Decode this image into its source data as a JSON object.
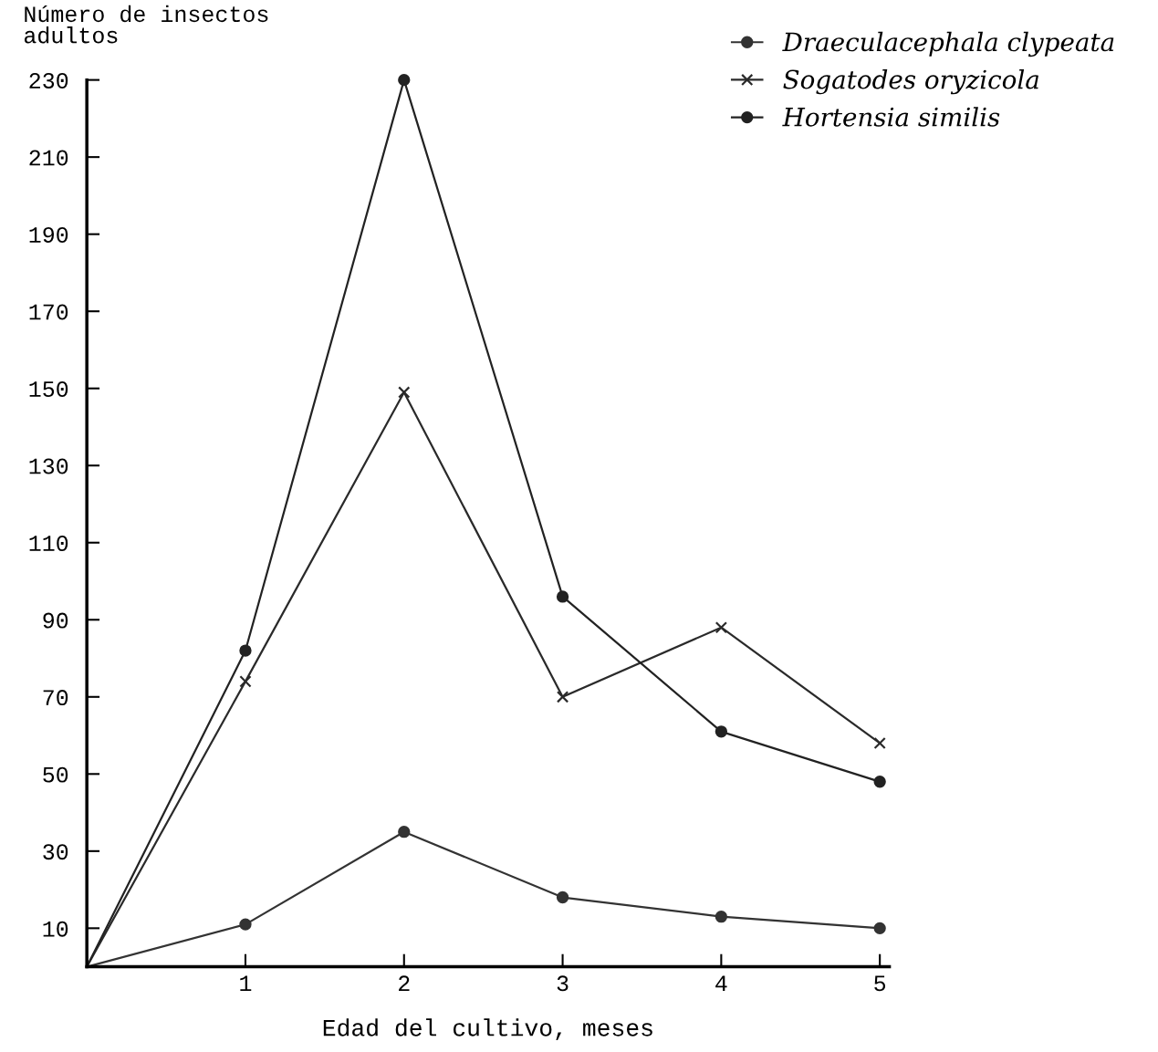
{
  "chart_data": {
    "type": "line",
    "ylabel": "Número de insectos\nadultos",
    "xlabel": "Edad del cultivo, meses",
    "x": [
      0,
      1,
      2,
      3,
      4,
      5
    ],
    "series": [
      {
        "name": "Draeculacephala clypeata",
        "color": "#333333",
        "marker": "circle",
        "values": [
          0,
          11,
          35,
          18,
          13,
          10
        ]
      },
      {
        "name": "Sogatodes oryzicola",
        "color": "#2a2a2a",
        "marker": "cross",
        "values": [
          0,
          74,
          149,
          70,
          88,
          58
        ]
      },
      {
        "name": "Hortensia similis",
        "color": "#222222",
        "marker": "circle",
        "values": [
          0,
          82,
          230,
          96,
          61,
          48
        ]
      }
    ],
    "xlim": [
      0,
      5.06
    ],
    "ylim": [
      0,
      230
    ],
    "xticks": [
      1,
      2,
      3,
      4,
      5
    ],
    "yticks": [
      10,
      30,
      50,
      70,
      90,
      110,
      130,
      150,
      170,
      190,
      210,
      230
    ],
    "grid": false,
    "legend": "top right",
    "line_style": "solid"
  }
}
